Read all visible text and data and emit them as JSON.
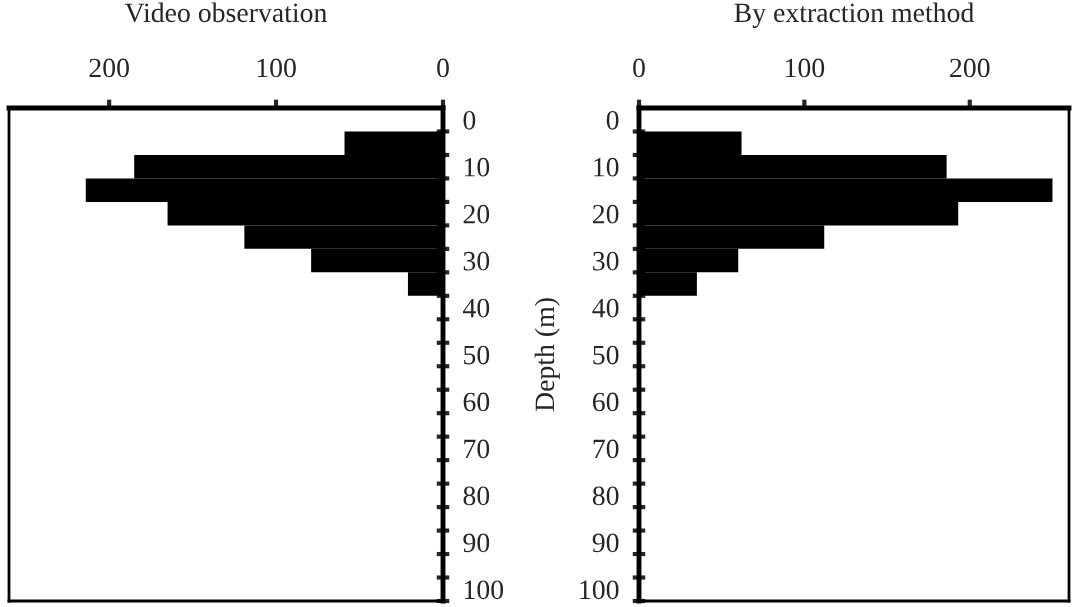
{
  "chart_data": [
    {
      "type": "bar",
      "orientation": "horizontal",
      "title": "Video observation",
      "ylabel": "Depth (m)",
      "color": "#000000",
      "categories": [
        "0",
        null,
        "10",
        null,
        "20",
        null,
        "30",
        null,
        "40",
        null,
        "50",
        null,
        "60",
        null,
        "70",
        null,
        "80",
        null,
        "90",
        null,
        "100"
      ],
      "values": [
        null,
        59,
        185,
        214,
        165,
        119,
        79,
        21,
        null,
        null,
        null,
        null,
        null,
        null,
        null,
        null,
        null,
        null,
        null,
        null,
        null
      ],
      "xlim": [
        260,
        0
      ],
      "xticks": [
        0,
        100,
        200
      ],
      "grid": false,
      "legend": false
    },
    {
      "type": "bar",
      "orientation": "horizontal",
      "title": "By extraction method",
      "color": "#000000",
      "categories": [
        "0",
        null,
        "10",
        null,
        "20",
        null,
        "30",
        null,
        "40",
        null,
        "50",
        null,
        "60",
        null,
        "70",
        null,
        "80",
        null,
        "90",
        null,
        "100"
      ],
      "values": [
        null,
        62,
        186,
        250,
        193,
        112,
        60,
        35,
        null,
        null,
        null,
        null,
        null,
        null,
        null,
        null,
        null,
        null,
        null,
        null,
        null
      ],
      "xlim": [
        0,
        260
      ],
      "xticks": [
        0,
        100,
        200
      ],
      "grid": false,
      "legend": false
    }
  ]
}
